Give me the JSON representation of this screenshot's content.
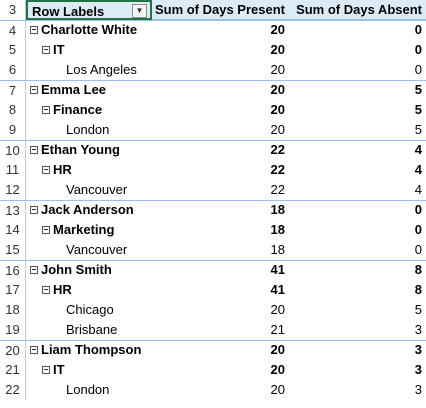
{
  "pivot": {
    "header": {
      "row_number": "3",
      "row_labels": "Row Labels",
      "col_present": "Sum of Days Present",
      "col_absent": "Sum of Days Absent",
      "filter_icon": "dropdown-arrow-icon"
    },
    "rows": [
      {
        "n": "4",
        "label": "Charlotte White",
        "level": 1,
        "present": "20",
        "absent": "0"
      },
      {
        "n": "5",
        "label": "IT",
        "level": 2,
        "present": "20",
        "absent": "0"
      },
      {
        "n": "6",
        "label": "Los Angeles",
        "level": 3,
        "present": "20",
        "absent": "0"
      },
      {
        "n": "7",
        "label": "Emma Lee",
        "level": 1,
        "present": "20",
        "absent": "5"
      },
      {
        "n": "8",
        "label": "Finance",
        "level": 2,
        "present": "20",
        "absent": "5"
      },
      {
        "n": "9",
        "label": "London",
        "level": 3,
        "present": "20",
        "absent": "5"
      },
      {
        "n": "10",
        "label": "Ethan Young",
        "level": 1,
        "present": "22",
        "absent": "4"
      },
      {
        "n": "11",
        "label": "HR",
        "level": 2,
        "present": "22",
        "absent": "4"
      },
      {
        "n": "12",
        "label": "Vancouver",
        "level": 3,
        "present": "22",
        "absent": "4"
      },
      {
        "n": "13",
        "label": "Jack Anderson",
        "level": 1,
        "present": "18",
        "absent": "0"
      },
      {
        "n": "14",
        "label": "Marketing",
        "level": 2,
        "present": "18",
        "absent": "0"
      },
      {
        "n": "15",
        "label": "Vancouver",
        "level": 3,
        "present": "18",
        "absent": "0"
      },
      {
        "n": "16",
        "label": "John Smith",
        "level": 1,
        "present": "41",
        "absent": "8"
      },
      {
        "n": "17",
        "label": "HR",
        "level": 2,
        "present": "41",
        "absent": "8"
      },
      {
        "n": "18",
        "label": "Chicago",
        "level": 3,
        "present": "20",
        "absent": "5"
      },
      {
        "n": "19",
        "label": "Brisbane",
        "level": 3,
        "present": "21",
        "absent": "3"
      },
      {
        "n": "20",
        "label": "Liam Thompson",
        "level": 1,
        "present": "20",
        "absent": "3"
      },
      {
        "n": "21",
        "label": "IT",
        "level": 2,
        "present": "20",
        "absent": "3"
      },
      {
        "n": "22",
        "label": "London",
        "level": 3,
        "present": "20",
        "absent": "3"
      }
    ]
  },
  "colors": {
    "header_fill": "#ddebf7",
    "row_border": "#9bc2e6",
    "active_cell_border": "#217346"
  }
}
